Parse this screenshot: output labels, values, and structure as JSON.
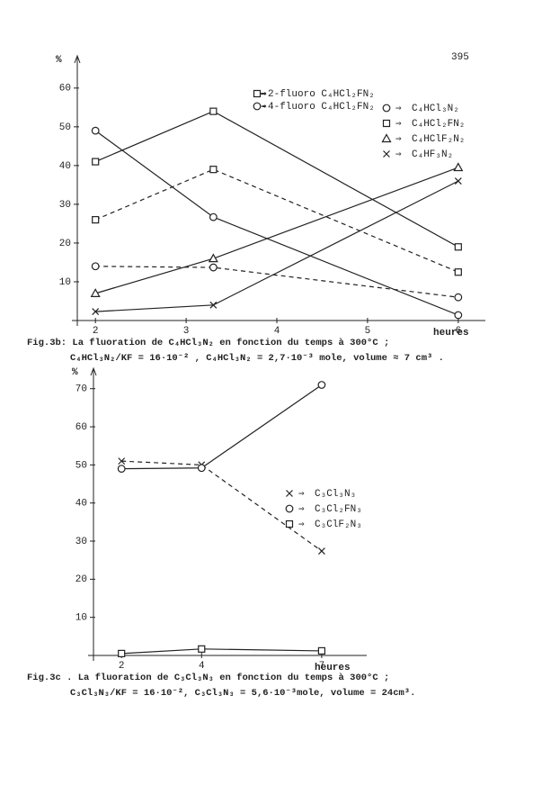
{
  "page_number": "395",
  "chart_data": [
    {
      "type": "line",
      "y_label": "%",
      "x_label": "heures",
      "caption": [
        "Fig.3b: La fluoration de C₄HCl₃N₂ en fonction du temps à 300°C ;",
        "C₄HCl₃N₂/KF = 16·10⁻² , C₄HCl₃N₂ = 2,7·10⁻³ mole, volume ≈ 7 cm³ ."
      ],
      "x": [
        2,
        3.3,
        6
      ],
      "xlim": [
        1.8,
        6.2
      ],
      "xticks": [
        2,
        3,
        4,
        5,
        6
      ],
      "ylim": [
        0,
        66
      ],
      "yticks": [
        10,
        20,
        30,
        40,
        50,
        60
      ],
      "series": [
        {
          "name": "2-fluoro C₄HCl₂FN₂",
          "marker": "square",
          "dashed": false,
          "color": "#222",
          "values": [
            41,
            54,
            19
          ]
        },
        {
          "name": "4-fluoro C₄HCl₂FN₂",
          "marker": "circle",
          "dashed": true,
          "color": "#222",
          "values": [
            14,
            13.7,
            6
          ]
        },
        {
          "name": "C₄HCl₃N₂",
          "marker": "circle",
          "dashed": false,
          "color": "#222",
          "values": [
            49,
            26.7,
            1.4
          ]
        },
        {
          "name": "C₄HCl₂FN₂",
          "marker": "square",
          "dashed": true,
          "color": "#222",
          "values": [
            26,
            39,
            12.5
          ]
        },
        {
          "name": "C₄HClF₂N₂",
          "marker": "triangle",
          "dashed": false,
          "color": "#222",
          "values": [
            7,
            16,
            39.5
          ]
        },
        {
          "name": "C₄HF₃N₂",
          "marker": "cross",
          "dashed": false,
          "color": "#222",
          "values": [
            2.3,
            4,
            36
          ]
        }
      ]
    },
    {
      "type": "line",
      "y_label": "%",
      "x_label": "heures",
      "caption": [
        "Fig.3c . La fluoration de C₃Cl₃N₃ en fonction du temps à 300°C ;",
        "C₃Cl₃N₃/KF = 16·10⁻², C₃Cl₃N₃ = 5,6·10⁻³mole, volume = 24cm³."
      ],
      "x": [
        2,
        4,
        7
      ],
      "xlim": [
        1.3,
        7.9
      ],
      "xticks": [
        2,
        4,
        7
      ],
      "ylim": [
        0,
        73
      ],
      "yticks": [
        10,
        20,
        30,
        40,
        50,
        60,
        70
      ],
      "series": [
        {
          "name": "C₃Cl₃N₃",
          "marker": "cross",
          "dashed": true,
          "color": "#222",
          "values": [
            51,
            50,
            27.4
          ]
        },
        {
          "name": "C₃Cl₂FN₃",
          "marker": "circle",
          "dashed": false,
          "color": "#222",
          "values": [
            49,
            49.2,
            71
          ]
        },
        {
          "name": "C₃ClF₂N₃",
          "marker": "square",
          "dashed": false,
          "color": "#222",
          "values": [
            0.5,
            1.7,
            1.2
          ]
        }
      ]
    }
  ]
}
